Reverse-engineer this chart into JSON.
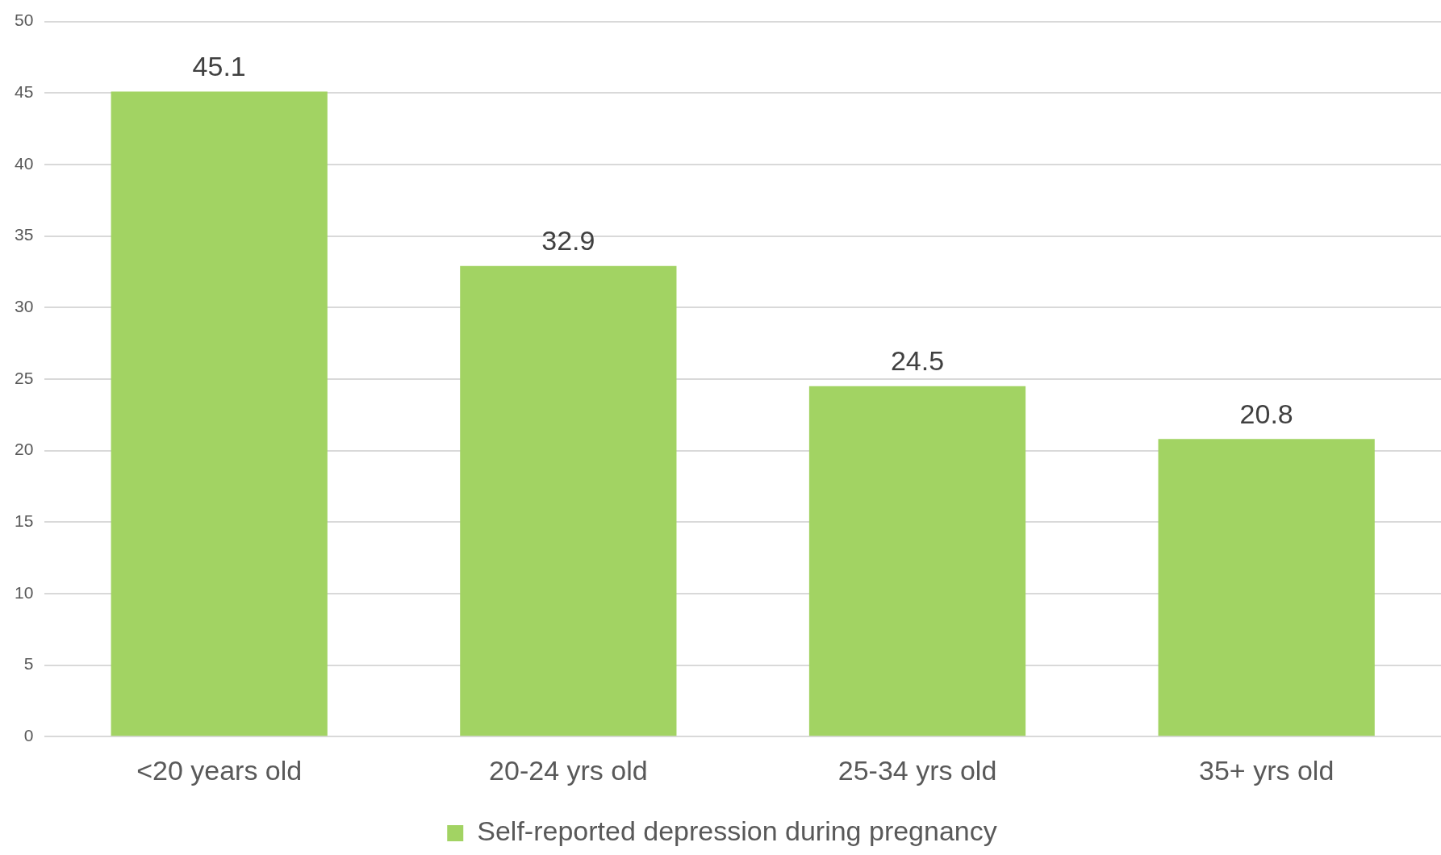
{
  "chart_data": {
    "type": "bar",
    "categories": [
      "<20 years old",
      "20-24 yrs old",
      "25-34 yrs old",
      "35+ yrs old"
    ],
    "series": [
      {
        "name": "Self-reported depression during pregnancy",
        "color": "#a2d363",
        "values": [
          45.1,
          32.9,
          24.5,
          20.8
        ]
      }
    ],
    "ylim": [
      0,
      50
    ],
    "yticks": [
      0,
      5,
      10,
      15,
      20,
      25,
      30,
      35,
      40,
      45,
      50
    ],
    "grid": "y",
    "legend": "bottom",
    "data_labels": true
  }
}
